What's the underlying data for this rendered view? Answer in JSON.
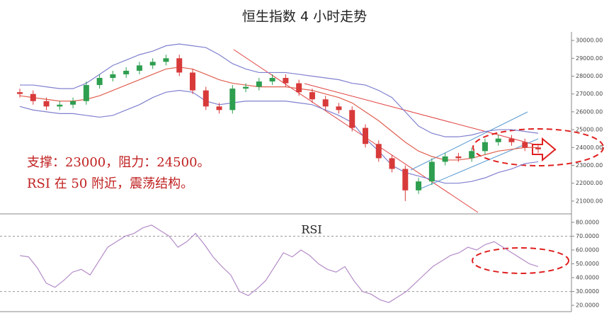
{
  "chart_data": [
    {
      "type": "candlestick",
      "title": "恒生指数 4 小时走势",
      "annotations": [
        "支撑：23000，阻力：24500。",
        "RSI 在 50 附近，震荡结构。"
      ],
      "open": [
        27100,
        27000,
        26600,
        26300,
        26400,
        26600,
        27500,
        27900,
        28100,
        28300,
        28600,
        28800,
        29000,
        28200,
        27200,
        26300,
        26100,
        27300,
        27400,
        27700,
        27900,
        27600,
        27100,
        26700,
        26300,
        26100,
        25100,
        24200,
        23400,
        22800,
        21600,
        22100,
        23200,
        23500,
        23400,
        23800,
        24300,
        24500,
        24300,
        24000
      ],
      "high": [
        27300,
        27200,
        26800,
        26600,
        26800,
        27700,
        28100,
        28300,
        28500,
        28800,
        29000,
        29200,
        29200,
        28400,
        27400,
        26500,
        27500,
        27600,
        27900,
        28100,
        28100,
        27800,
        27300,
        26900,
        26500,
        26300,
        25300,
        24400,
        23600,
        23000,
        22300,
        23400,
        23700,
        23700,
        24000,
        24500,
        24700,
        24700,
        24500,
        24200
      ],
      "low": [
        26800,
        26400,
        26100,
        26100,
        26200,
        26400,
        27300,
        27700,
        27900,
        28100,
        28400,
        28600,
        28000,
        27000,
        26100,
        25900,
        25900,
        27100,
        27200,
        27500,
        27400,
        26900,
        26500,
        26100,
        25900,
        24900,
        24000,
        23200,
        22600,
        21000,
        21400,
        21900,
        23000,
        23200,
        23200,
        23600,
        24100,
        24100,
        23800,
        23700
      ],
      "close": [
        27000,
        26600,
        26300,
        26400,
        26600,
        27500,
        27900,
        28100,
        28300,
        28600,
        28800,
        29000,
        28200,
        27200,
        26300,
        26100,
        27300,
        27400,
        27700,
        27900,
        27600,
        27100,
        26700,
        26300,
        26100,
        25100,
        24200,
        23400,
        22800,
        21600,
        22100,
        23200,
        23500,
        23400,
        23800,
        24300,
        24500,
        24300,
        24000,
        23900
      ],
      "series": [
        {
          "color": "#8080d0",
          "values": [
            27500,
            27500,
            27400,
            27300,
            27300,
            27600,
            28100,
            28600,
            28900,
            29200,
            29400,
            29700,
            29800,
            29700,
            29600,
            29200,
            28700,
            28400,
            28200,
            28200,
            28200,
            28100,
            28000,
            27900,
            27800,
            27600,
            27500,
            27200,
            26800,
            26000,
            25200,
            24800,
            24600,
            24600,
            24700,
            24900,
            25000,
            25000,
            24900,
            24800
          ]
        },
        {
          "color": "#e06050",
          "values": [
            26900,
            26800,
            26700,
            26600,
            26600,
            26700,
            26900,
            27200,
            27500,
            27800,
            28100,
            28400,
            28500,
            28400,
            28100,
            27800,
            27600,
            27500,
            27400,
            27400,
            27400,
            27300,
            27200,
            27000,
            26800,
            26500,
            26000,
            25500,
            24900,
            24300,
            23800,
            23500,
            23300,
            23300,
            23400,
            23600,
            23800,
            23900,
            24000,
            24000
          ]
        },
        {
          "color": "#8080d0",
          "values": [
            26300,
            26100,
            26000,
            25900,
            25900,
            25800,
            25700,
            25800,
            26100,
            26400,
            26800,
            27100,
            27200,
            27100,
            26600,
            26400,
            26500,
            26600,
            26600,
            26600,
            26600,
            26500,
            26400,
            26100,
            25800,
            25400,
            24500,
            23800,
            23000,
            22600,
            22400,
            22200,
            22000,
            22000,
            22100,
            22300,
            22600,
            22800,
            23100,
            23200
          ]
        }
      ],
      "up_color": "#2e9e4f",
      "down_color": "#d83a3a",
      "ylim": [
        20400,
        30400
      ],
      "yticks": [
        {
          "value": 21000,
          "label": "21000.00"
        },
        {
          "value": 22000,
          "label": "22000.00"
        },
        {
          "value": 23000,
          "label": "23000.00"
        },
        {
          "value": 24000,
          "label": "24000.00"
        },
        {
          "value": 25000,
          "label": "25000.00"
        },
        {
          "value": 26000,
          "label": "26000.00"
        },
        {
          "value": 27000,
          "label": "27000.00"
        },
        {
          "value": 28000,
          "label": "28000.00"
        },
        {
          "value": 29000,
          "label": "29000.00"
        },
        {
          "value": 30000,
          "label": "30000.00"
        }
      ]
    },
    {
      "type": "line",
      "title": "RSI",
      "color": "#b48cc8",
      "values": [
        56,
        55,
        47,
        36,
        33,
        38,
        44,
        46,
        42,
        52,
        62,
        66,
        70,
        72,
        76,
        78,
        74,
        70,
        62,
        66,
        72,
        64,
        55,
        48,
        42,
        30,
        27,
        32,
        38,
        48,
        58,
        55,
        60,
        56,
        50,
        46,
        44,
        48,
        38,
        30,
        28,
        24,
        22,
        26,
        30,
        36,
        42,
        48,
        52,
        56,
        58,
        62,
        60,
        64,
        66,
        62,
        58,
        54,
        50,
        48
      ],
      "ylim": [
        18,
        82
      ],
      "reference_lines": [
        30,
        70
      ],
      "yticks": [
        {
          "value": 20,
          "label": "20.0000"
        },
        {
          "value": 30,
          "label": "30.0000"
        },
        {
          "value": 40,
          "label": "40.0000"
        },
        {
          "value": 50,
          "label": "50.0000"
        },
        {
          "value": 60,
          "label": "60.0000"
        },
        {
          "value": 70,
          "label": "70.0000"
        },
        {
          "value": 80,
          "label": "80.0000"
        }
      ]
    }
  ]
}
